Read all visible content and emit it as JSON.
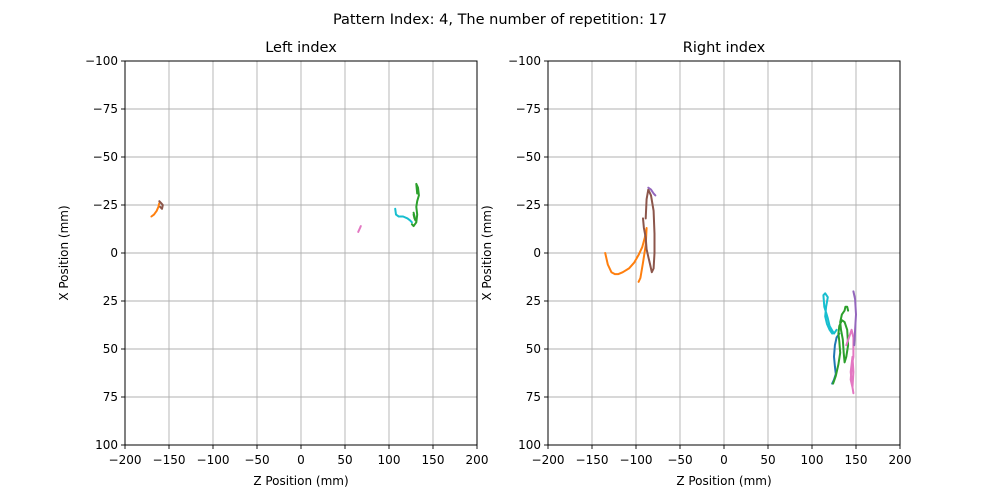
{
  "chart_data": {
    "type": "line",
    "suptitle": "Pattern Index: 4, The number of repetition: 17",
    "colors": [
      "#1f77b4",
      "#ff7f0e",
      "#2ca02c",
      "#d62728",
      "#9467bd",
      "#8c564b",
      "#e377c2",
      "#7f7f7f",
      "#bcbd22",
      "#17becf"
    ],
    "panels": [
      {
        "title": "Left index",
        "xlabel": "Z Position (mm)",
        "ylabel": "X Position (mm)",
        "xlim": [
          -200,
          200
        ],
        "ylim": [
          100,
          -100
        ],
        "y_inverted": true,
        "grid": true,
        "xticks": [
          -200,
          -150,
          -100,
          -50,
          0,
          50,
          100,
          150,
          200
        ],
        "xtick_labels": [
          "−200",
          "−150",
          "−100",
          "−50",
          "0",
          "50",
          "100",
          "150",
          "200"
        ],
        "yticks": [
          -100,
          -75,
          -50,
          -25,
          0,
          25,
          50,
          75,
          100
        ],
        "ytick_labels": [
          "−100",
          "−75",
          "−50",
          "−25",
          "0",
          "25",
          "50",
          "75",
          "100"
        ],
        "series": [
          {
            "color": "#ff7f0e",
            "x": [
              -170,
              -167,
              -164,
              -162,
              -161
            ],
            "y": [
              -19,
              -20,
              -22,
              -24,
              -26
            ]
          },
          {
            "color": "#8c564b",
            "x": [
              -161,
              -159,
              -157,
              -158,
              -160,
              -158
            ],
            "y": [
              -27,
              -26,
              -25,
              -23,
              -24,
              -23
            ]
          },
          {
            "color": "#e377c2",
            "x": [
              65,
              66,
              67,
              68,
              67,
              66,
              65
            ],
            "y": [
              -11,
              -12,
              -13,
              -14,
              -13,
              -12,
              -11
            ]
          },
          {
            "color": "#17becf",
            "x": [
              107,
              108,
              111,
              116,
              121,
              124,
              126
            ],
            "y": [
              -23,
              -20,
              -19,
              -19,
              -18,
              -17,
              -16
            ]
          },
          {
            "color": "#2ca02c",
            "x": [
              126,
              128,
              131,
              132,
              131,
              132,
              134,
              133,
              131,
              132
            ],
            "y": [
              -15,
              -14,
              -16,
              -20,
              -24,
              -27,
              -30,
              -34,
              -36,
              -31
            ]
          },
          {
            "color": "#2ca02c",
            "x": [
              128,
              129,
              130,
              129,
              128
            ],
            "y": [
              -20,
              -18,
              -17,
              -19,
              -21
            ]
          }
        ]
      },
      {
        "title": "Right index",
        "xlabel": "Z Position (mm)",
        "ylabel": "X Position (mm)",
        "xlim": [
          -200,
          200
        ],
        "ylim": [
          100,
          -100
        ],
        "y_inverted": true,
        "grid": true,
        "xticks": [
          -200,
          -150,
          -100,
          -50,
          0,
          50,
          100,
          150,
          200
        ],
        "xtick_labels": [
          "−200",
          "−150",
          "−100",
          "−50",
          "0",
          "50",
          "100",
          "150",
          "200"
        ],
        "yticks": [
          -100,
          -75,
          -50,
          -25,
          0,
          25,
          50,
          75,
          100
        ],
        "ytick_labels": [
          "−100",
          "−75",
          "−50",
          "−25",
          "0",
          "25",
          "50",
          "75",
          "100"
        ],
        "series": [
          {
            "color": "#ff7f0e",
            "x": [
              -135,
              -132,
              -128,
              -124,
              -120,
              -115,
              -108,
              -102,
              -97,
              -93,
              -90,
              -88,
              -89,
              -92,
              -95,
              -97
            ],
            "y": [
              0,
              6,
              10,
              11,
              11,
              10,
              8,
              5,
              1,
              -3,
              -8,
              -13,
              -4,
              5,
              13,
              15
            ]
          },
          {
            "color": "#8c564b",
            "x": [
              -92,
              -91,
              -89,
              -88,
              -86,
              -84,
              -82,
              -80,
              -79,
              -79,
              -80,
              -83,
              -86,
              -88,
              -89
            ],
            "y": [
              -18,
              -13,
              -8,
              -2,
              2,
              6,
              10,
              8,
              0,
              -10,
              -22,
              -30,
              -33,
              -28,
              -18
            ]
          },
          {
            "color": "#9467bd",
            "x": [
              -86,
              -83,
              -80,
              -78
            ],
            "y": [
              -34,
              -33,
              -31,
              -30
            ]
          },
          {
            "color": "#17becf",
            "x": [
              128,
              125,
              120,
              118,
              116,
              114,
              113,
              115,
              118,
              116,
              115,
              117,
              120,
              123
            ],
            "y": [
              40,
              42,
              38,
              34,
              31,
              28,
              22,
              21,
              23,
              28,
              33,
              37,
              40,
              42
            ]
          },
          {
            "color": "#1f77b4",
            "x": [
              131,
              128,
              126,
              125,
              126,
              127,
              125,
              123
            ],
            "y": [
              42,
              44,
              48,
              54,
              59,
              63,
              66,
              68
            ]
          },
          {
            "color": "#2ca02c",
            "x": [
              124,
              127,
              130,
              132,
              131,
              130,
              131,
              134,
              137,
              140,
              141,
              139,
              137,
              136,
              135,
              133,
              132,
              134,
              137,
              138,
              140,
              141
            ],
            "y": [
              68,
              64,
              58,
              52,
              46,
              42,
              38,
              35,
              36,
              40,
              48,
              54,
              57,
              52,
              45,
              40,
              36,
              32,
              30,
              28,
              28,
              30
            ]
          },
          {
            "color": "#e377c2",
            "x": [
              139,
              142,
              145,
              147,
              147,
              145,
              144,
              146,
              147,
              146,
              144,
              146,
              147
            ],
            "y": [
              48,
              44,
              40,
              44,
              54,
              60,
              66,
              70,
              62,
              54,
              62,
              70,
              73
            ]
          },
          {
            "color": "#9467bd",
            "x": [
              147,
              149,
              150,
              149,
              148
            ],
            "y": [
              20,
              24,
              32,
              40,
              48
            ]
          }
        ]
      }
    ]
  }
}
